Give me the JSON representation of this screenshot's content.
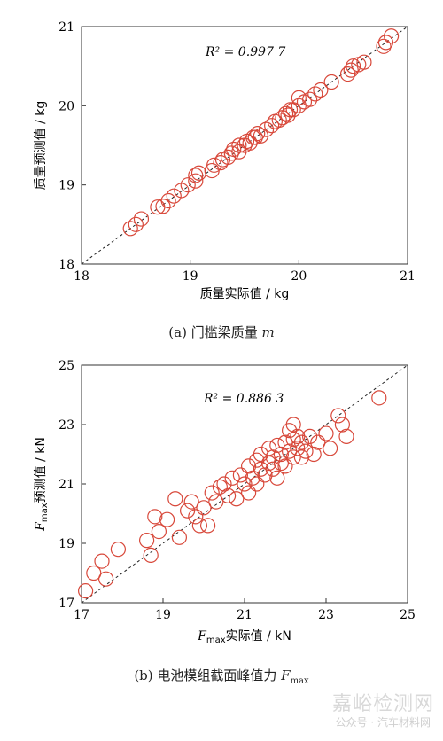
{
  "chart_data": [
    {
      "type": "scatter",
      "title": "",
      "xlabel": "质量实际值 / kg",
      "ylabel": "质量预测值 / kg",
      "xlim": [
        18,
        21
      ],
      "ylim": [
        18,
        21
      ],
      "xticks": [
        "18",
        "19",
        "20",
        "21"
      ],
      "yticks": [
        "18",
        "19",
        "20",
        "21"
      ],
      "annotation": "R² = 0.997 7",
      "reference_line": "y = x (dashed)",
      "marker": "open circle",
      "color": "#d8483a",
      "points": [
        [
          18.45,
          18.45
        ],
        [
          18.5,
          18.5
        ],
        [
          18.55,
          18.57
        ],
        [
          18.7,
          18.72
        ],
        [
          18.75,
          18.73
        ],
        [
          18.8,
          18.8
        ],
        [
          18.85,
          18.86
        ],
        [
          18.92,
          18.93
        ],
        [
          18.98,
          19.0
        ],
        [
          19.05,
          19.05
        ],
        [
          19.05,
          19.12
        ],
        [
          19.08,
          19.15
        ],
        [
          19.2,
          19.18
        ],
        [
          19.22,
          19.25
        ],
        [
          19.28,
          19.28
        ],
        [
          19.3,
          19.32
        ],
        [
          19.35,
          19.35
        ],
        [
          19.38,
          19.4
        ],
        [
          19.4,
          19.45
        ],
        [
          19.45,
          19.42
        ],
        [
          19.45,
          19.5
        ],
        [
          19.5,
          19.5
        ],
        [
          19.52,
          19.55
        ],
        [
          19.55,
          19.53
        ],
        [
          19.58,
          19.6
        ],
        [
          19.6,
          19.6
        ],
        [
          19.62,
          19.65
        ],
        [
          19.65,
          19.62
        ],
        [
          19.7,
          19.7
        ],
        [
          19.75,
          19.75
        ],
        [
          19.78,
          19.8
        ],
        [
          19.82,
          19.82
        ],
        [
          19.85,
          19.85
        ],
        [
          19.88,
          19.9
        ],
        [
          19.9,
          19.88
        ],
        [
          19.92,
          19.95
        ],
        [
          19.95,
          19.95
        ],
        [
          20.0,
          20.0
        ],
        [
          20.0,
          20.1
        ],
        [
          20.05,
          20.05
        ],
        [
          20.1,
          20.08
        ],
        [
          20.15,
          20.15
        ],
        [
          20.2,
          20.2
        ],
        [
          20.3,
          20.3
        ],
        [
          20.45,
          20.4
        ],
        [
          20.48,
          20.45
        ],
        [
          20.5,
          20.5
        ],
        [
          20.55,
          20.52
        ],
        [
          20.6,
          20.55
        ],
        [
          20.78,
          20.75
        ],
        [
          20.8,
          20.8
        ],
        [
          20.85,
          20.88
        ]
      ]
    },
    {
      "type": "scatter",
      "title": "",
      "xlabel_main": "F",
      "xlabel_sub": "max",
      "xlabel_rest": "实际值 / kN",
      "ylabel_main": "F",
      "ylabel_sub": "max",
      "ylabel_rest": "预测值 / kN",
      "xlim": [
        17,
        25
      ],
      "ylim": [
        17,
        25
      ],
      "xticks": [
        "17",
        "19",
        "21",
        "23",
        "25"
      ],
      "yticks": [
        "17",
        "19",
        "21",
        "23",
        "25"
      ],
      "annotation": "R² = 0.886 3",
      "reference_line": "y = x (dashed)",
      "marker": "open circle",
      "color": "#d8483a",
      "points": [
        [
          17.1,
          17.4
        ],
        [
          17.3,
          18.0
        ],
        [
          17.5,
          18.4
        ],
        [
          17.6,
          17.8
        ],
        [
          17.9,
          18.8
        ],
        [
          18.6,
          19.1
        ],
        [
          18.7,
          18.6
        ],
        [
          18.8,
          19.9
        ],
        [
          18.9,
          19.4
        ],
        [
          19.1,
          19.8
        ],
        [
          19.3,
          20.5
        ],
        [
          19.4,
          19.2
        ],
        [
          19.6,
          20.1
        ],
        [
          19.7,
          20.4
        ],
        [
          19.8,
          19.9
        ],
        [
          19.9,
          19.6
        ],
        [
          20.0,
          20.2
        ],
        [
          20.1,
          19.6
        ],
        [
          20.2,
          20.7
        ],
        [
          20.3,
          20.4
        ],
        [
          20.4,
          20.9
        ],
        [
          20.5,
          21.0
        ],
        [
          20.6,
          20.6
        ],
        [
          20.7,
          21.2
        ],
        [
          20.8,
          20.5
        ],
        [
          20.9,
          21.3
        ],
        [
          21.0,
          21.0
        ],
        [
          21.1,
          21.6
        ],
        [
          21.1,
          20.7
        ],
        [
          21.2,
          21.2
        ],
        [
          21.3,
          21.8
        ],
        [
          21.3,
          21.0
        ],
        [
          21.4,
          21.5
        ],
        [
          21.4,
          22.0
        ],
        [
          21.5,
          21.3
        ],
        [
          21.6,
          21.7
        ],
        [
          21.6,
          22.2
        ],
        [
          21.7,
          21.5
        ],
        [
          21.7,
          21.9
        ],
        [
          21.8,
          21.2
        ],
        [
          21.8,
          22.3
        ],
        [
          21.9,
          21.7
        ],
        [
          21.9,
          22.0
        ],
        [
          22.0,
          22.4
        ],
        [
          22.0,
          21.6
        ],
        [
          22.1,
          22.1
        ],
        [
          22.1,
          22.8
        ],
        [
          22.2,
          21.9
        ],
        [
          22.2,
          22.5
        ],
        [
          22.2,
          23.0
        ],
        [
          22.3,
          22.2
        ],
        [
          22.3,
          22.6
        ],
        [
          22.4,
          21.9
        ],
        [
          22.4,
          22.4
        ],
        [
          22.5,
          22.1
        ],
        [
          22.6,
          22.6
        ],
        [
          22.7,
          22.0
        ],
        [
          22.8,
          22.4
        ],
        [
          23.0,
          22.7
        ],
        [
          23.1,
          22.2
        ],
        [
          23.3,
          23.3
        ],
        [
          23.4,
          23.0
        ],
        [
          23.5,
          22.6
        ],
        [
          24.3,
          23.9
        ]
      ]
    }
  ],
  "captions": {
    "a_prefix": "(a)  门槛梁质量 ",
    "a_var": "m",
    "b_prefix": "(b)  电池模组截面峰值力 ",
    "b_var": "F",
    "b_sub": "max"
  },
  "watermark": {
    "main": "嘉峪检测网",
    "sub": "公众号 · 汽车材料网"
  },
  "colors": {
    "marker": "#d8483a",
    "axis": "#333333"
  }
}
